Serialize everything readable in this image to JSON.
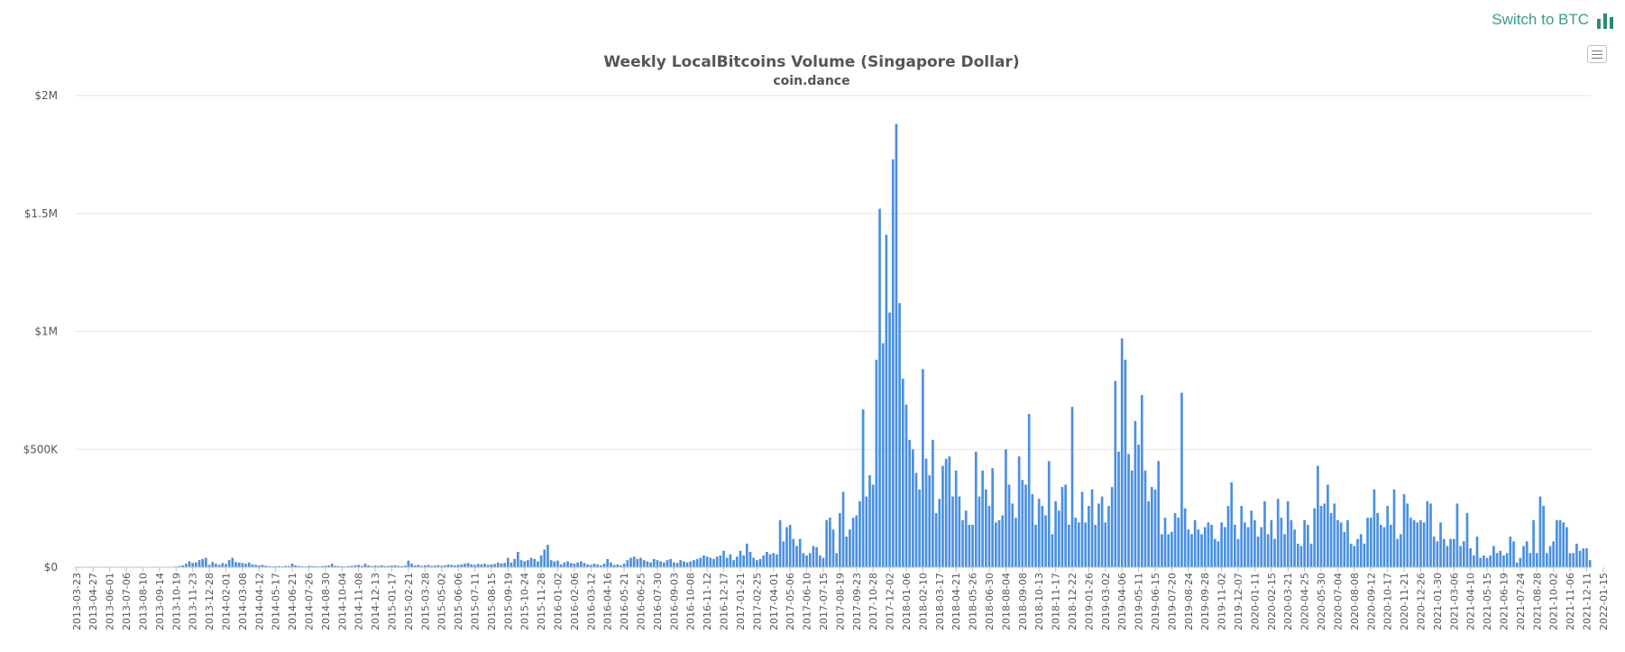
{
  "header": {
    "switch_label": "Switch to BTC",
    "switch_icon": "bar-chart-icon",
    "menu_icon": "hamburger-menu-icon"
  },
  "colors": {
    "bar": "#4a90e2",
    "accent": "#3a9c8a",
    "grid": "#e6e6e6"
  },
  "chart_data": {
    "type": "bar",
    "title": "Weekly LocalBitcoins Volume (Singapore Dollar)",
    "subtitle": "coin.dance",
    "xlabel": "",
    "ylabel": "",
    "ylim": [
      0,
      2000000
    ],
    "yticks": [
      0,
      500000,
      1000000,
      1500000,
      2000000
    ],
    "ytick_labels": [
      "$0",
      "$500K",
      "$1M",
      "$1.5M",
      "$2M"
    ],
    "tick_labels": [
      "2013-03-23",
      "2013-04-27",
      "2013-06-01",
      "2013-07-06",
      "2013-08-10",
      "2013-09-14",
      "2013-10-19",
      "2013-11-23",
      "2013-12-28",
      "2014-02-01",
      "2014-03-08",
      "2014-04-12",
      "2014-05-17",
      "2014-06-21",
      "2014-07-26",
      "2014-08-30",
      "2014-10-04",
      "2014-11-08",
      "2014-12-13",
      "2015-01-17",
      "2015-02-21",
      "2015-03-28",
      "2015-05-02",
      "2015-06-06",
      "2015-07-11",
      "2015-08-15",
      "2015-09-19",
      "2015-10-24",
      "2015-11-28",
      "2016-01-02",
      "2016-02-06",
      "2016-03-12",
      "2016-04-16",
      "2016-05-21",
      "2016-06-25",
      "2016-07-30",
      "2016-09-03",
      "2016-10-08",
      "2016-11-12",
      "2016-12-17",
      "2017-01-21",
      "2017-02-25",
      "2017-04-01",
      "2017-05-06",
      "2017-06-10",
      "2017-07-15",
      "2017-08-19",
      "2017-09-23",
      "2017-10-28",
      "2017-12-02",
      "2018-01-06",
      "2018-02-10",
      "2018-03-17",
      "2018-04-21",
      "2018-05-26",
      "2018-06-30",
      "2018-08-04",
      "2018-09-08",
      "2018-10-13",
      "2018-11-17",
      "2018-12-22",
      "2019-01-26",
      "2019-03-02",
      "2019-04-06",
      "2019-05-11",
      "2019-06-15",
      "2019-07-20",
      "2019-08-24",
      "2019-09-28",
      "2019-11-02",
      "2019-12-07",
      "2020-01-11",
      "2020-02-15",
      "2020-03-21",
      "2020-04-25",
      "2020-05-30",
      "2020-07-04",
      "2020-08-08",
      "2020-09-12",
      "2020-10-17",
      "2020-11-21",
      "2020-12-26",
      "2021-01-30",
      "2021-03-06",
      "2021-04-10",
      "2021-05-15",
      "2021-06-19",
      "2021-07-24",
      "2021-08-28",
      "2021-10-02",
      "2021-11-06",
      "2021-12-11",
      "2022-01-15"
    ],
    "weeks_per_tick": 5,
    "values": [
      0,
      0,
      0,
      0,
      0,
      0,
      0,
      0,
      0,
      0,
      0,
      0,
      0,
      0,
      0,
      0,
      0,
      0,
      0,
      0,
      0,
      0,
      0,
      0,
      0,
      0,
      0,
      0,
      0,
      0,
      3000,
      5000,
      8000,
      15000,
      25000,
      18000,
      20000,
      30000,
      35000,
      40000,
      10000,
      22000,
      15000,
      10000,
      18000,
      14000,
      30000,
      40000,
      22000,
      20000,
      18000,
      15000,
      20000,
      12000,
      10000,
      8000,
      10000,
      6000,
      5000,
      3000,
      4000,
      5000,
      3000,
      6000,
      5000,
      15000,
      8000,
      5000,
      4000,
      3000,
      6000,
      5000,
      4000,
      3000,
      5000,
      6000,
      8000,
      15000,
      6000,
      5000,
      4000,
      3000,
      5000,
      6000,
      8000,
      10000,
      6000,
      15000,
      8000,
      5000,
      7000,
      6000,
      8000,
      5000,
      6000,
      7000,
      8000,
      6000,
      5000,
      7000,
      28000,
      16000,
      8000,
      10000,
      6000,
      8000,
      10000,
      6000,
      7000,
      9000,
      6000,
      8000,
      12000,
      10000,
      8000,
      10000,
      12000,
      15000,
      18000,
      12000,
      10000,
      14000,
      12000,
      15000,
      10000,
      12000,
      14000,
      20000,
      16000,
      18000,
      40000,
      20000,
      35000,
      65000,
      30000,
      25000,
      30000,
      40000,
      35000,
      25000,
      50000,
      75000,
      95000,
      30000,
      25000,
      28000,
      12000,
      20000,
      25000,
      18000,
      15000,
      20000,
      25000,
      18000,
      12000,
      10000,
      15000,
      12000,
      8000,
      15000,
      35000,
      20000,
      10000,
      12000,
      8000,
      15000,
      30000,
      40000,
      45000,
      35000,
      40000,
      30000,
      25000,
      20000,
      35000,
      30000,
      25000,
      20000,
      30000,
      35000,
      20000,
      18000,
      30000,
      25000,
      20000,
      25000,
      30000,
      35000,
      40000,
      50000,
      45000,
      40000,
      35000,
      45000,
      50000,
      70000,
      40000,
      55000,
      30000,
      45000,
      70000,
      50000,
      100000,
      65000,
      40000,
      30000,
      35000,
      50000,
      65000,
      55000,
      60000,
      55000,
      200000,
      110000,
      170000,
      180000,
      120000,
      90000,
      120000,
      60000,
      50000,
      60000,
      90000,
      85000,
      50000,
      40000,
      200000,
      210000,
      160000,
      60000,
      230000,
      320000,
      130000,
      160000,
      210000,
      220000,
      280000,
      670000,
      300000,
      390000,
      350000,
      880000,
      1520000,
      950000,
      1410000,
      1080000,
      1730000,
      1880000,
      1120000,
      800000,
      690000,
      540000,
      500000,
      400000,
      330000,
      840000,
      460000,
      390000,
      540000,
      230000,
      290000,
      430000,
      460000,
      470000,
      300000,
      410000,
      300000,
      200000,
      240000,
      180000,
      180000,
      490000,
      300000,
      410000,
      330000,
      260000,
      420000,
      190000,
      200000,
      220000,
      500000,
      350000,
      270000,
      210000,
      470000,
      370000,
      350000,
      650000,
      310000,
      180000,
      290000,
      260000,
      220000,
      450000,
      140000,
      280000,
      240000,
      340000,
      350000,
      180000,
      680000,
      210000,
      190000,
      320000,
      190000,
      260000,
      330000,
      180000,
      270000,
      300000,
      190000,
      260000,
      340000,
      790000,
      490000,
      970000,
      880000,
      480000,
      410000,
      620000,
      520000,
      730000,
      410000,
      280000,
      340000,
      330000,
      450000,
      140000,
      210000,
      140000,
      150000,
      230000,
      210000,
      740000,
      250000,
      160000,
      140000,
      200000,
      160000,
      140000,
      170000,
      190000,
      180000,
      120000,
      110000,
      190000,
      170000,
      260000,
      360000,
      180000,
      120000,
      260000,
      190000,
      170000,
      240000,
      200000,
      130000,
      170000,
      280000,
      140000,
      200000,
      120000,
      290000,
      210000,
      140000,
      280000,
      200000,
      160000,
      100000,
      90000,
      200000,
      180000,
      100000,
      250000,
      430000,
      260000,
      270000,
      350000,
      230000,
      270000,
      200000,
      190000,
      150000,
      200000,
      100000,
      90000,
      120000,
      140000,
      100000,
      210000,
      210000,
      330000,
      230000,
      180000,
      170000,
      260000,
      180000,
      330000,
      120000,
      140000,
      310000,
      270000,
      210000,
      200000,
      190000,
      200000,
      190000,
      280000,
      270000,
      130000,
      110000,
      190000,
      120000,
      90000,
      120000,
      120000,
      270000,
      90000,
      110000,
      230000,
      80000,
      50000,
      130000,
      40000,
      50000,
      40000,
      50000,
      90000,
      60000,
      70000,
      50000,
      60000,
      130000,
      110000,
      20000,
      40000,
      90000,
      110000,
      60000,
      200000,
      60000,
      300000,
      260000,
      60000,
      90000,
      110000,
      200000,
      200000,
      190000,
      170000,
      60000,
      60000,
      100000,
      70000,
      80000,
      80000,
      30000
    ]
  }
}
